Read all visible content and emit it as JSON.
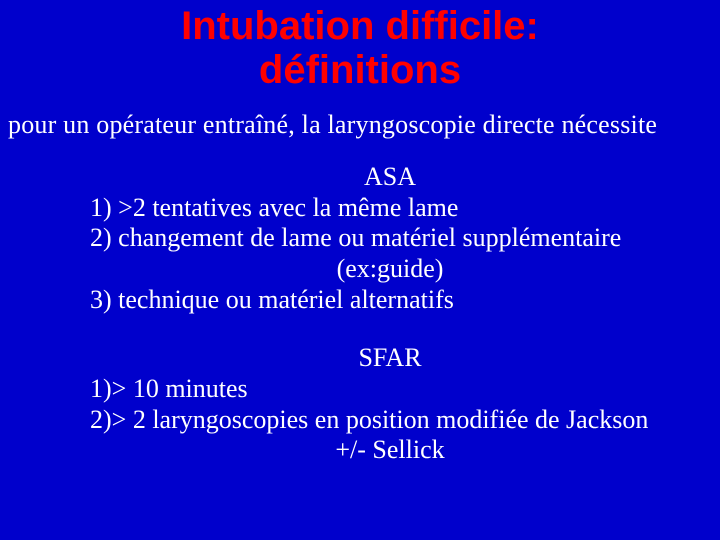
{
  "colors": {
    "background": "#0000cc",
    "title": "#ff0000",
    "body_text": "#ffffff"
  },
  "typography": {
    "title_font": "Arial",
    "title_weight": "bold",
    "title_size_pt": 30,
    "body_font": "Times New Roman",
    "body_size_pt": 20
  },
  "title": {
    "line1": "Intubation difficile:",
    "line2": "définitions"
  },
  "intro": "pour un  opérateur entraîné, la laryngoscopie directe nécessite",
  "asa": {
    "label": "ASA",
    "items": {
      "i1": "1) >2 tentatives avec la même lame",
      "i2": "2) changement de lame ou matériel supplémentaire",
      "i2_sub": "(ex:guide)",
      "i3": "3) technique ou  matériel alternatifs"
    }
  },
  "sfar": {
    "label": "SFAR",
    "items": {
      "i1": "1)> 10 minutes",
      "i2": "2)> 2 laryngoscopies en position modifiée de Jackson",
      "i2_sub": "+/- Sellick"
    }
  }
}
